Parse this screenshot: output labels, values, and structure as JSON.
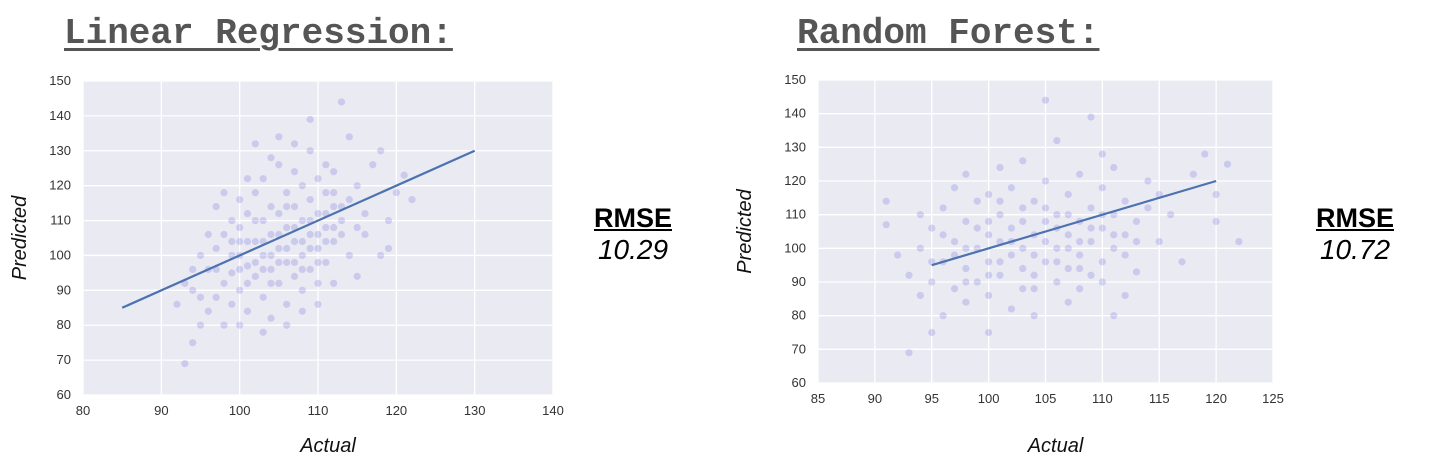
{
  "panels": [
    {
      "title": "Linear Regression:",
      "metric_name": "RMSE",
      "metric_value": "10.29"
    },
    {
      "title": "Random Forest:",
      "metric_name": "RMSE",
      "metric_value": "10.72"
    }
  ],
  "chart_data": [
    {
      "type": "scatter",
      "title": "Linear Regression:",
      "xlabel": "Actual",
      "ylabel": "Predicted",
      "xlim": [
        80,
        140
      ],
      "ylim": [
        60,
        150
      ],
      "xticks": [
        80,
        90,
        100,
        110,
        120,
        130,
        140
      ],
      "yticks": [
        60,
        70,
        80,
        90,
        100,
        110,
        120,
        130,
        140,
        150
      ],
      "grid": true,
      "point_color": "#4b4bd8",
      "line_color": "#4c72b0",
      "background": "#eaeaf2",
      "fit_line": [
        [
          85,
          85
        ],
        [
          130,
          130
        ]
      ],
      "points": [
        [
          93,
          69
        ],
        [
          94,
          75
        ],
        [
          95,
          80
        ],
        [
          96,
          84
        ],
        [
          97,
          88
        ],
        [
          98,
          92
        ],
        [
          98,
          80
        ],
        [
          99,
          95
        ],
        [
          99,
          86
        ],
        [
          100,
          90
        ],
        [
          100,
          100
        ],
        [
          100,
          108
        ],
        [
          101,
          97
        ],
        [
          101,
          112
        ],
        [
          101,
          84
        ],
        [
          102,
          104
        ],
        [
          102,
          94
        ],
        [
          102,
          118
        ],
        [
          103,
          100
        ],
        [
          103,
          110
        ],
        [
          103,
          88
        ],
        [
          103,
          122
        ],
        [
          104,
          106
        ],
        [
          104,
          96
        ],
        [
          104,
          114
        ],
        [
          104,
          82
        ],
        [
          105,
          102
        ],
        [
          105,
          112
        ],
        [
          105,
          92
        ],
        [
          105,
          126
        ],
        [
          106,
          108
        ],
        [
          106,
          98
        ],
        [
          106,
          118
        ],
        [
          106,
          86
        ],
        [
          107,
          104
        ],
        [
          107,
          114
        ],
        [
          107,
          94
        ],
        [
          107,
          124
        ],
        [
          108,
          110
        ],
        [
          108,
          100
        ],
        [
          108,
          120
        ],
        [
          108,
          90
        ],
        [
          109,
          106
        ],
        [
          109,
          116
        ],
        [
          109,
          96
        ],
        [
          109,
          130
        ],
        [
          110,
          112
        ],
        [
          110,
          102
        ],
        [
          110,
          122
        ],
        [
          110,
          92
        ],
        [
          111,
          108
        ],
        [
          111,
          118
        ],
        [
          111,
          98
        ],
        [
          112,
          114
        ],
        [
          112,
          104
        ],
        [
          112,
          124
        ],
        [
          113,
          144
        ],
        [
          113,
          110
        ],
        [
          114,
          116
        ],
        [
          114,
          100
        ],
        [
          115,
          120
        ],
        [
          116,
          106
        ],
        [
          117,
          126
        ],
        [
          118,
          130
        ],
        [
          119,
          110
        ],
        [
          120,
          118
        ],
        [
          121,
          123
        ],
        [
          122,
          116
        ],
        [
          96,
          106
        ],
        [
          97,
          114
        ],
        [
          98,
          118
        ],
        [
          99,
          110
        ],
        [
          100,
          80
        ],
        [
          101,
          122
        ],
        [
          102,
          132
        ],
        [
          103,
          78
        ],
        [
          104,
          128
        ],
        [
          105,
          134
        ],
        [
          106,
          80
        ],
        [
          107,
          132
        ],
        [
          108,
          84
        ],
        [
          109,
          139
        ],
        [
          110,
          86
        ],
        [
          111,
          126
        ],
        [
          112,
          92
        ],
        [
          114,
          134
        ],
        [
          115,
          94
        ],
        [
          116,
          112
        ],
        [
          118,
          100
        ],
        [
          119,
          102
        ],
        [
          94,
          90
        ],
        [
          95,
          100
        ],
        [
          96,
          96
        ],
        [
          97,
          102
        ],
        [
          98,
          106
        ],
        [
          99,
          100
        ],
        [
          100,
          104
        ],
        [
          101,
          92
        ],
        [
          102,
          98
        ],
        [
          103,
          104
        ],
        [
          104,
          100
        ],
        [
          105,
          106
        ],
        [
          106,
          102
        ],
        [
          107,
          108
        ],
        [
          108,
          104
        ],
        [
          109,
          110
        ],
        [
          110,
          106
        ],
        [
          111,
          112
        ],
        [
          112,
          108
        ],
        [
          113,
          114
        ],
        [
          92,
          86
        ],
        [
          93,
          92
        ],
        [
          94,
          96
        ],
        [
          95,
          88
        ],
        [
          97,
          96
        ],
        [
          99,
          104
        ],
        [
          100,
          96
        ],
        [
          102,
          110
        ],
        [
          104,
          92
        ],
        [
          106,
          114
        ],
        [
          108,
          96
        ],
        [
          110,
          98
        ],
        [
          112,
          118
        ],
        [
          100,
          116
        ],
        [
          101,
          104
        ],
        [
          103,
          96
        ],
        [
          105,
          98
        ],
        [
          107,
          98
        ],
        [
          109,
          102
        ],
        [
          111,
          104
        ],
        [
          113,
          106
        ],
        [
          115,
          108
        ]
      ]
    },
    {
      "type": "scatter",
      "title": "Random Forest:",
      "xlabel": "Actual",
      "ylabel": "Predicted",
      "xlim": [
        85,
        125
      ],
      "ylim": [
        60,
        150
      ],
      "xticks": [
        85,
        90,
        95,
        100,
        105,
        110,
        115,
        120,
        125
      ],
      "yticks": [
        60,
        70,
        80,
        90,
        100,
        110,
        120,
        130,
        140,
        150
      ],
      "grid": true,
      "point_color": "#4b4bd8",
      "line_color": "#4c72b0",
      "background": "#eaeaf2",
      "fit_line": [
        [
          95,
          95
        ],
        [
          120,
          120
        ]
      ],
      "points": [
        [
          91,
          114
        ],
        [
          91,
          107
        ],
        [
          92,
          98
        ],
        [
          93,
          69
        ],
        [
          93,
          92
        ],
        [
          94,
          86
        ],
        [
          94,
          100
        ],
        [
          95,
          75
        ],
        [
          95,
          90
        ],
        [
          95,
          106
        ],
        [
          96,
          80
        ],
        [
          96,
          96
        ],
        [
          96,
          112
        ],
        [
          97,
          88
        ],
        [
          97,
          102
        ],
        [
          97,
          118
        ],
        [
          98,
          84
        ],
        [
          98,
          94
        ],
        [
          98,
          108
        ],
        [
          98,
          122
        ],
        [
          99,
          90
        ],
        [
          99,
          100
        ],
        [
          99,
          114
        ],
        [
          100,
          75
        ],
        [
          100,
          86
        ],
        [
          100,
          96
        ],
        [
          100,
          104
        ],
        [
          100,
          116
        ],
        [
          101,
          92
        ],
        [
          101,
          102
        ],
        [
          101,
          110
        ],
        [
          101,
          124
        ],
        [
          102,
          82
        ],
        [
          102,
          98
        ],
        [
          102,
          106
        ],
        [
          102,
          118
        ],
        [
          103,
          88
        ],
        [
          103,
          100
        ],
        [
          103,
          112
        ],
        [
          103,
          126
        ],
        [
          104,
          92
        ],
        [
          104,
          104
        ],
        [
          104,
          114
        ],
        [
          104,
          80
        ],
        [
          105,
          144
        ],
        [
          105,
          96
        ],
        [
          105,
          108
        ],
        [
          105,
          120
        ],
        [
          106,
          90
        ],
        [
          106,
          100
        ],
        [
          106,
          110
        ],
        [
          106,
          132
        ],
        [
          107,
          94
        ],
        [
          107,
          104
        ],
        [
          107,
          116
        ],
        [
          107,
          84
        ],
        [
          108,
          98
        ],
        [
          108,
          108
        ],
        [
          108,
          122
        ],
        [
          108,
          88
        ],
        [
          109,
          102
        ],
        [
          109,
          112
        ],
        [
          109,
          139
        ],
        [
          109,
          92
        ],
        [
          110,
          96
        ],
        [
          110,
          106
        ],
        [
          110,
          118
        ],
        [
          110,
          128
        ],
        [
          111,
          80
        ],
        [
          111,
          100
        ],
        [
          111,
          110
        ],
        [
          111,
          124
        ],
        [
          112,
          104
        ],
        [
          112,
          114
        ],
        [
          112,
          86
        ],
        [
          113,
          108
        ],
        [
          113,
          93
        ],
        [
          114,
          112
        ],
        [
          114,
          120
        ],
        [
          115,
          102
        ],
        [
          115,
          116
        ],
        [
          116,
          110
        ],
        [
          117,
          96
        ],
        [
          118,
          122
        ],
        [
          119,
          128
        ],
        [
          120,
          108
        ],
        [
          120,
          116
        ],
        [
          121,
          125
        ],
        [
          122,
          102
        ],
        [
          94,
          110
        ],
        [
          96,
          104
        ],
        [
          98,
          100
        ],
        [
          100,
          108
        ],
        [
          102,
          102
        ],
        [
          104,
          98
        ],
        [
          106,
          106
        ],
        [
          108,
          102
        ],
        [
          110,
          110
        ],
        [
          112,
          98
        ],
        [
          99,
          106
        ],
        [
          101,
          96
        ],
        [
          103,
          94
        ],
        [
          105,
          102
        ],
        [
          107,
          100
        ],
        [
          109,
          106
        ],
        [
          111,
          104
        ],
        [
          113,
          102
        ],
        [
          97,
          98
        ],
        [
          95,
          96
        ],
        [
          105,
          112
        ],
        [
          107,
          110
        ],
        [
          103,
          108
        ],
        [
          101,
          114
        ],
        [
          106,
          96
        ],
        [
          108,
          94
        ],
        [
          110,
          90
        ],
        [
          104,
          88
        ],
        [
          100,
          92
        ],
        [
          98,
          90
        ]
      ]
    }
  ]
}
